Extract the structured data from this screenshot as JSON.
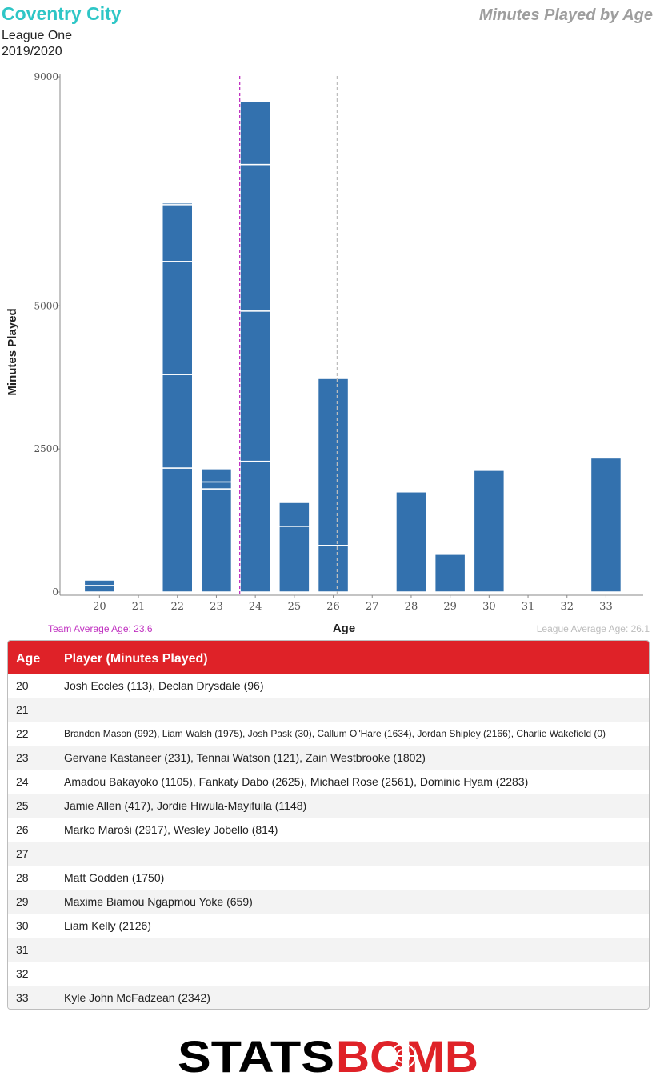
{
  "header": {
    "team": "Coventry City",
    "league": "League One",
    "season": "2019/2020",
    "chart_title": "Minutes Played by Age"
  },
  "chart_data": {
    "type": "bar",
    "stacked": true,
    "xlabel": "Age",
    "ylabel": "Minutes Played",
    "categories": [
      "20",
      "21",
      "22",
      "23",
      "24",
      "25",
      "26",
      "27",
      "28",
      "29",
      "30",
      "31",
      "32",
      "33"
    ],
    "yticks": [
      0,
      2500,
      5000,
      9000
    ],
    "ylim": [
      0,
      9000
    ],
    "stacks": [
      [
        113,
        96
      ],
      [],
      [
        2166,
        1634,
        1975,
        992,
        30
      ],
      [
        1802,
        121,
        231
      ],
      [
        2283,
        2625,
        2561,
        1105
      ],
      [
        1148,
        417
      ],
      [
        814,
        2917
      ],
      [],
      [
        1750
      ],
      [
        659
      ],
      [
        2126
      ],
      [],
      [],
      [
        2342
      ]
    ],
    "bar_color": "#3371ae",
    "team_average_age": 23.6,
    "league_average_age": 26.1,
    "team_average_label": "Team Average Age: 23.6",
    "league_average_label": "League Average Age: 26.1",
    "team_average_color": "#c030c0",
    "league_average_color": "#bdbdbd"
  },
  "table": {
    "header_age": "Age",
    "header_player": "Player (Minutes Played)",
    "rows": [
      {
        "age": "20",
        "players": "Josh Eccles (113), Declan Drysdale (96)"
      },
      {
        "age": "21",
        "players": ""
      },
      {
        "age": "22",
        "players": "Brandon Mason (992), Liam Walsh (1975), Josh Pask (30), Callum O\"Hare (1634), Jordan Shipley (2166), Charlie Wakefield (0)"
      },
      {
        "age": "23",
        "players": "Gervane Kastaneer (231), Tennai Watson (121), Zain Westbrooke (1802)"
      },
      {
        "age": "24",
        "players": "Amadou Bakayoko (1105), Fankaty Dabo (2625), Michael Rose (2561), Dominic Hyam (2283)"
      },
      {
        "age": "25",
        "players": "Jamie Allen (417), Jordie Hiwula-Mayifuila (1148)"
      },
      {
        "age": "26",
        "players": "Marko Maroši (2917), Wesley Jobello (814)"
      },
      {
        "age": "27",
        "players": ""
      },
      {
        "age": "28",
        "players": "Matt Godden (1750)"
      },
      {
        "age": "29",
        "players": "Maxime Biamou Ngapmou Yoke (659)"
      },
      {
        "age": "30",
        "players": "Liam Kelly (2126)"
      },
      {
        "age": "31",
        "players": ""
      },
      {
        "age": "32",
        "players": ""
      },
      {
        "age": "33",
        "players": "Kyle John McFadzean (2342)"
      }
    ]
  },
  "footer": {
    "logo_text_left": "STATS",
    "logo_text_right": "BOMB",
    "logo_color_left": "#000000",
    "logo_color_right": "#df2228"
  }
}
